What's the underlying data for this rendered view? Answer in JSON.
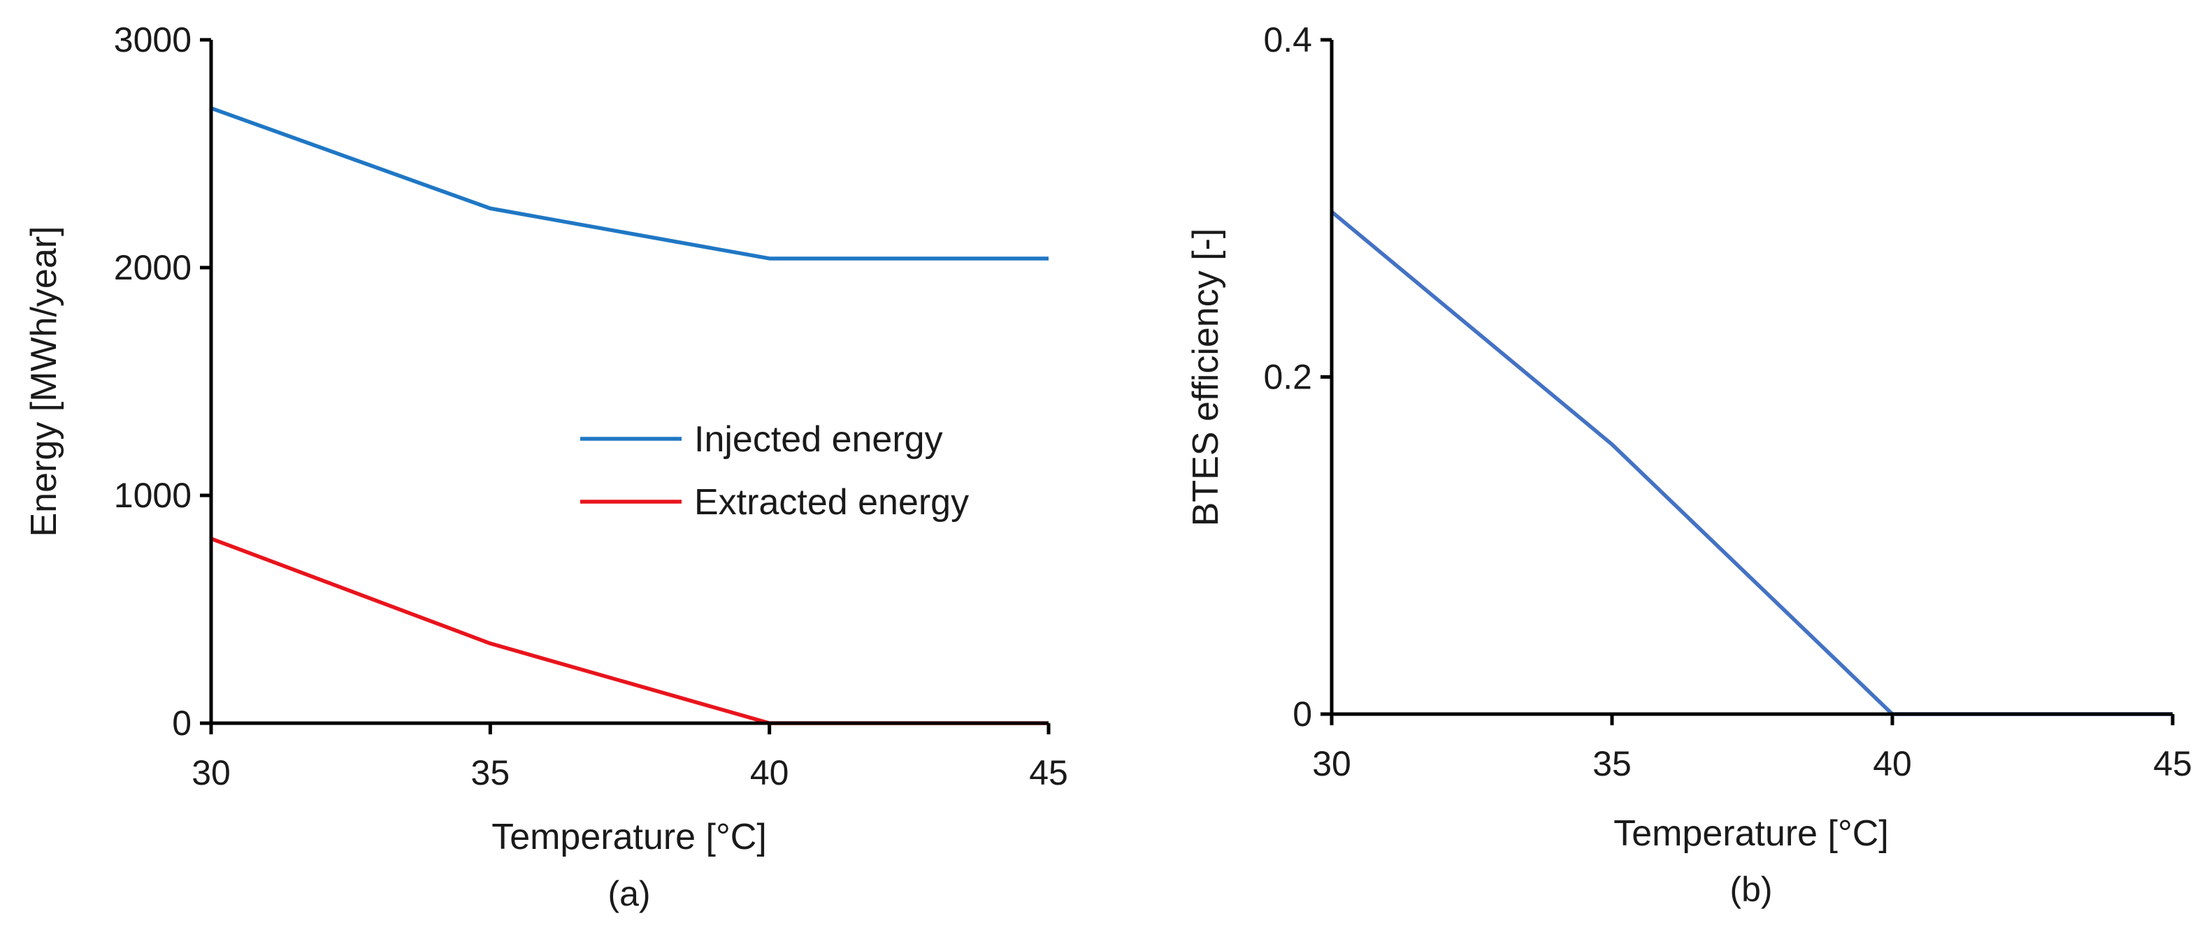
{
  "chart_data": [
    {
      "type": "line",
      "subtitle": "(a)",
      "xlabel": "Temperature  [°C]",
      "ylabel": "Energy [MWh/year]",
      "x": [
        30,
        35,
        40,
        45
      ],
      "xlim": [
        30,
        45
      ],
      "ylim": [
        0,
        3000
      ],
      "xticks": [
        "30",
        "35",
        "40",
        "45"
      ],
      "yticks": [
        "0",
        "1000",
        "2000",
        "3000"
      ],
      "grid": false,
      "legend_position": "center-right",
      "series": [
        {
          "name": "Injected energy",
          "color": "#1f77c4",
          "values": [
            2700,
            2260,
            2040,
            2040
          ]
        },
        {
          "name": "Extracted energy",
          "color": "#e8141c",
          "values": [
            810,
            350,
            0,
            0
          ]
        }
      ]
    },
    {
      "type": "line",
      "subtitle": "(b)",
      "xlabel": "Temperature  [°C]",
      "ylabel": "BTES efficiency [-]",
      "x": [
        30,
        35,
        40,
        45
      ],
      "xlim": [
        30,
        45
      ],
      "ylim": [
        0,
        0.4
      ],
      "xticks": [
        "30",
        "35",
        "40",
        "45"
      ],
      "yticks": [
        "0",
        "0.2",
        "0.4"
      ],
      "grid": false,
      "series": [
        {
          "name": "BTES efficiency",
          "color": "#4472c4",
          "values": [
            0.298,
            0.16,
            0,
            0
          ]
        }
      ]
    }
  ]
}
